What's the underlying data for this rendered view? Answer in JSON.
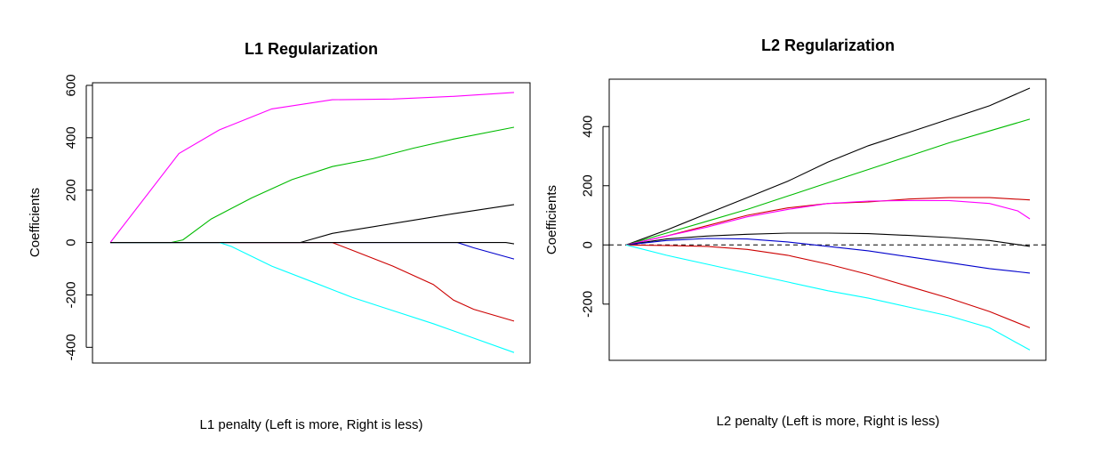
{
  "chart_data": [
    {
      "type": "line",
      "title": "L1 Regularization",
      "xlabel": "L1 penalty (Left is more, Right is less)",
      "ylabel": "Coefficients",
      "yticks": [
        -400,
        -200,
        0,
        200,
        400,
        600
      ],
      "ylim": [
        -460,
        610
      ],
      "xlim": [
        0,
        1.0
      ],
      "grid": false,
      "zero_line": false,
      "series": [
        {
          "color": "#ff00ff",
          "points": [
            [
              0.0,
              0
            ],
            [
              0.17,
              340
            ],
            [
              0.27,
              430
            ],
            [
              0.4,
              510
            ],
            [
              0.55,
              545
            ],
            [
              0.7,
              548
            ],
            [
              0.85,
              558
            ],
            [
              1.0,
              573
            ]
          ]
        },
        {
          "color": "#00bb00",
          "points": [
            [
              0.0,
              0
            ],
            [
              0.15,
              0
            ],
            [
              0.18,
              10
            ],
            [
              0.25,
              90
            ],
            [
              0.35,
              170
            ],
            [
              0.45,
              240
            ],
            [
              0.55,
              290
            ],
            [
              0.65,
              320
            ],
            [
              0.75,
              360
            ],
            [
              0.85,
              395
            ],
            [
              1.0,
              440
            ]
          ]
        },
        {
          "color": "#000000",
          "points": [
            [
              0.0,
              0
            ],
            [
              0.47,
              0
            ],
            [
              0.55,
              35
            ],
            [
              0.65,
              60
            ],
            [
              0.75,
              85
            ],
            [
              0.85,
              110
            ],
            [
              1.0,
              145
            ]
          ]
        },
        {
          "color": "#0000cc",
          "points": [
            [
              0.0,
              0
            ],
            [
              0.86,
              0
            ],
            [
              0.9,
              -20
            ],
            [
              1.0,
              -63
            ]
          ]
        },
        {
          "color": "#cc0000",
          "points": [
            [
              0.0,
              0
            ],
            [
              0.55,
              0
            ],
            [
              0.6,
              -30
            ],
            [
              0.7,
              -90
            ],
            [
              0.8,
              -160
            ],
            [
              0.85,
              -220
            ],
            [
              0.9,
              -255
            ],
            [
              1.0,
              -300
            ]
          ]
        },
        {
          "color": "#00ffff",
          "points": [
            [
              0.0,
              0
            ],
            [
              0.27,
              0
            ],
            [
              0.3,
              -15
            ],
            [
              0.4,
              -90
            ],
            [
              0.5,
              -150
            ],
            [
              0.6,
              -210
            ],
            [
              0.7,
              -260
            ],
            [
              0.8,
              -310
            ],
            [
              0.9,
              -365
            ],
            [
              1.0,
              -420
            ]
          ]
        },
        {
          "color": "#000000",
          "points": [
            [
              0.0,
              0
            ],
            [
              0.98,
              0
            ],
            [
              1.0,
              -5
            ]
          ]
        }
      ]
    },
    {
      "type": "line",
      "title": "L2 Regularization",
      "xlabel": "L2 penalty (Left is more, Right is less)",
      "ylabel": "Coefficients",
      "yticks": [
        -200,
        0,
        200,
        400
      ],
      "ylim": [
        -390,
        560
      ],
      "xlim": [
        0,
        1.0
      ],
      "grid": false,
      "zero_line": true,
      "series": [
        {
          "color": "#000000",
          "points": [
            [
              0.0,
              0
            ],
            [
              0.1,
              50
            ],
            [
              0.2,
              105
            ],
            [
              0.3,
              160
            ],
            [
              0.4,
              215
            ],
            [
              0.5,
              280
            ],
            [
              0.6,
              335
            ],
            [
              0.7,
              380
            ],
            [
              0.8,
              425
            ],
            [
              0.9,
              470
            ],
            [
              1.0,
              530
            ]
          ]
        },
        {
          "color": "#00bb00",
          "points": [
            [
              0.0,
              0
            ],
            [
              0.1,
              40
            ],
            [
              0.2,
              80
            ],
            [
              0.3,
              120
            ],
            [
              0.4,
              165
            ],
            [
              0.5,
              210
            ],
            [
              0.6,
              255
            ],
            [
              0.7,
              300
            ],
            [
              0.8,
              345
            ],
            [
              0.9,
              385
            ],
            [
              1.0,
              425
            ]
          ]
        },
        {
          "color": "#cc0000",
          "points": [
            [
              0.0,
              0
            ],
            [
              0.1,
              30
            ],
            [
              0.2,
              65
            ],
            [
              0.3,
              100
            ],
            [
              0.4,
              125
            ],
            [
              0.5,
              140
            ],
            [
              0.6,
              145
            ],
            [
              0.7,
              155
            ],
            [
              0.8,
              160
            ],
            [
              0.9,
              160
            ],
            [
              1.0,
              152
            ]
          ]
        },
        {
          "color": "#ff00ff",
          "points": [
            [
              0.0,
              0
            ],
            [
              0.1,
              30
            ],
            [
              0.2,
              60
            ],
            [
              0.3,
              95
            ],
            [
              0.4,
              120
            ],
            [
              0.5,
              140
            ],
            [
              0.6,
              148
            ],
            [
              0.7,
              150
            ],
            [
              0.8,
              150
            ],
            [
              0.9,
              140
            ],
            [
              0.97,
              115
            ],
            [
              1.0,
              88
            ]
          ]
        },
        {
          "color": "#000000",
          "points": [
            [
              0.0,
              0
            ],
            [
              0.1,
              20
            ],
            [
              0.2,
              30
            ],
            [
              0.3,
              36
            ],
            [
              0.4,
              40
            ],
            [
              0.5,
              40
            ],
            [
              0.6,
              38
            ],
            [
              0.7,
              32
            ],
            [
              0.8,
              25
            ],
            [
              0.9,
              15
            ],
            [
              1.0,
              -5
            ]
          ]
        },
        {
          "color": "#0000cc",
          "points": [
            [
              0.0,
              0
            ],
            [
              0.1,
              15
            ],
            [
              0.2,
              22
            ],
            [
              0.3,
              20
            ],
            [
              0.4,
              10
            ],
            [
              0.5,
              -5
            ],
            [
              0.6,
              -20
            ],
            [
              0.7,
              -40
            ],
            [
              0.8,
              -60
            ],
            [
              0.9,
              -80
            ],
            [
              1.0,
              -95
            ]
          ]
        },
        {
          "color": "#cc0000",
          "points": [
            [
              0.0,
              0
            ],
            [
              0.1,
              -2
            ],
            [
              0.2,
              -5
            ],
            [
              0.3,
              -15
            ],
            [
              0.4,
              -35
            ],
            [
              0.5,
              -65
            ],
            [
              0.6,
              -100
            ],
            [
              0.7,
              -140
            ],
            [
              0.8,
              -180
            ],
            [
              0.9,
              -225
            ],
            [
              1.0,
              -280
            ]
          ]
        },
        {
          "color": "#00ffff",
          "points": [
            [
              0.0,
              0
            ],
            [
              0.1,
              -35
            ],
            [
              0.2,
              -65
            ],
            [
              0.3,
              -95
            ],
            [
              0.4,
              -125
            ],
            [
              0.5,
              -155
            ],
            [
              0.6,
              -180
            ],
            [
              0.7,
              -210
            ],
            [
              0.8,
              -240
            ],
            [
              0.9,
              -280
            ],
            [
              1.0,
              -355
            ]
          ]
        }
      ]
    }
  ]
}
